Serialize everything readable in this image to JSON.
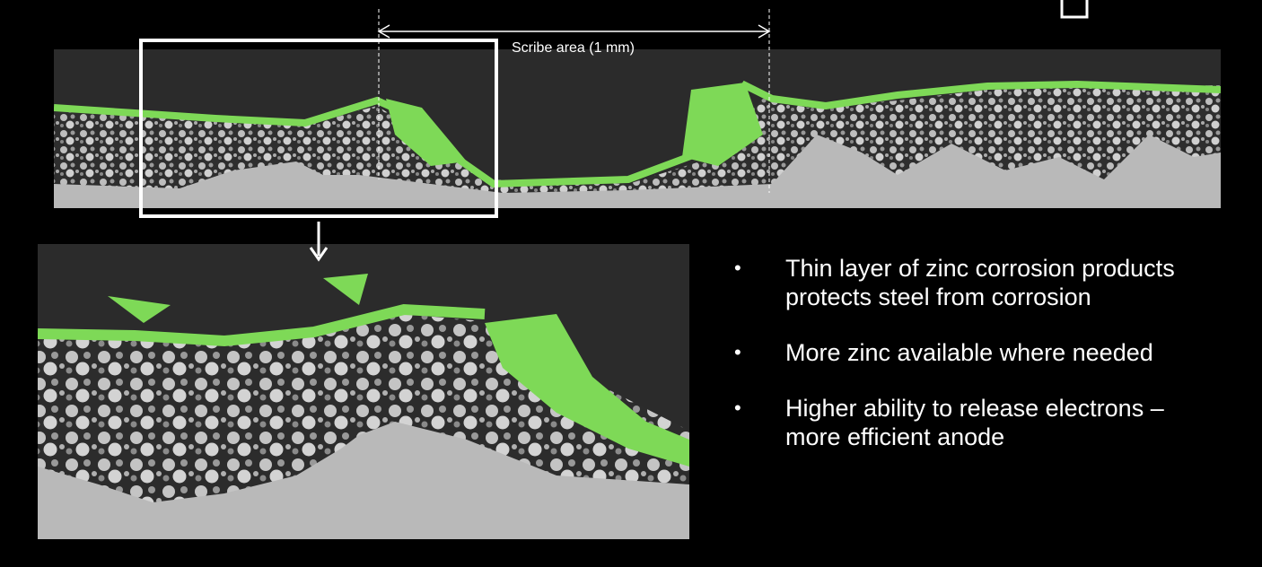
{
  "scribe_label": "Scribe area (1 mm)",
  "bullets": [
    "Thin layer of zinc corrosion products protects steel from corrosion",
    "More zinc available where needed",
    "Higher ability to release electrons – more efficient anode"
  ]
}
